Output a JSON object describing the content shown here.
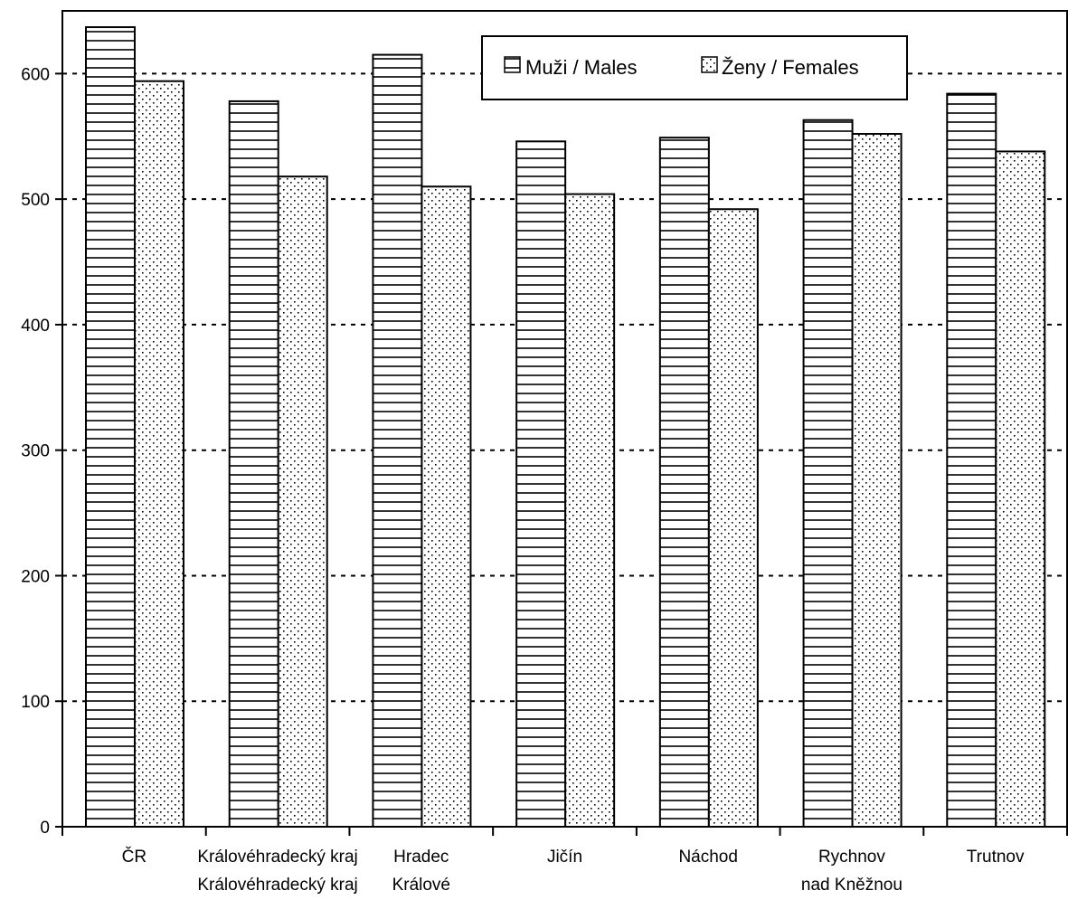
{
  "chart_data": {
    "type": "bar",
    "categories": [
      [
        "ČR"
      ],
      [
        "Královéhradecký kraj",
        "Královéhradecký kraj"
      ],
      [
        "Hradec",
        "Králové"
      ],
      [
        "Jičín"
      ],
      [
        "Náchod"
      ],
      [
        "Rychnov",
        "nad Kněžnou"
      ],
      [
        "Trutnov"
      ]
    ],
    "series": [
      {
        "name": "Muži / Males",
        "values": [
          637,
          578,
          615,
          546,
          549,
          563,
          584
        ]
      },
      {
        "name": "Ženy / Females",
        "values": [
          594,
          518,
          510,
          504,
          492,
          552,
          538
        ]
      }
    ],
    "title": "",
    "xlabel": "",
    "ylabel": "",
    "ylim": [
      0,
      650
    ],
    "yticks": [
      "0",
      "100",
      "200",
      "300",
      "400",
      "500",
      "600"
    ],
    "grid": true,
    "legend_position": "top-right",
    "colors": {
      "axis": "#000000",
      "bar_fill": "#ffffff",
      "pattern": "#000000"
    }
  }
}
